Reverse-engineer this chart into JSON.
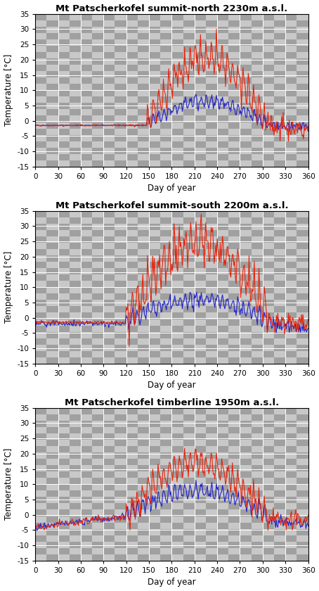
{
  "titles": [
    "Mt Patscherkofel summit-north 2230m a.s.l.",
    "Mt Patscherkofel summit-south 2200m a.s.l.",
    "Mt Patscherkofel timberline 1950m a.s.l."
  ],
  "xlabel": "Day of year",
  "ylabel": "Temperature [°C]",
  "xlim": [
    0,
    360
  ],
  "ylim": [
    -15,
    35
  ],
  "xticks": [
    0,
    30,
    60,
    90,
    120,
    150,
    180,
    210,
    240,
    270,
    300,
    330,
    360
  ],
  "yticks": [
    -15,
    -10,
    -5,
    0,
    5,
    10,
    15,
    20,
    25,
    30,
    35
  ],
  "red_color": "#e8230a",
  "blue_color": "#2222cc",
  "line_width": 0.8,
  "checker_light": "#c8c8c8",
  "checker_dark": "#a0a0a0",
  "figsize": [
    4.54,
    8.4
  ],
  "dpi": 100,
  "title_fontsize": 9.5,
  "axis_fontsize": 8.5,
  "tick_fontsize": 7.5
}
